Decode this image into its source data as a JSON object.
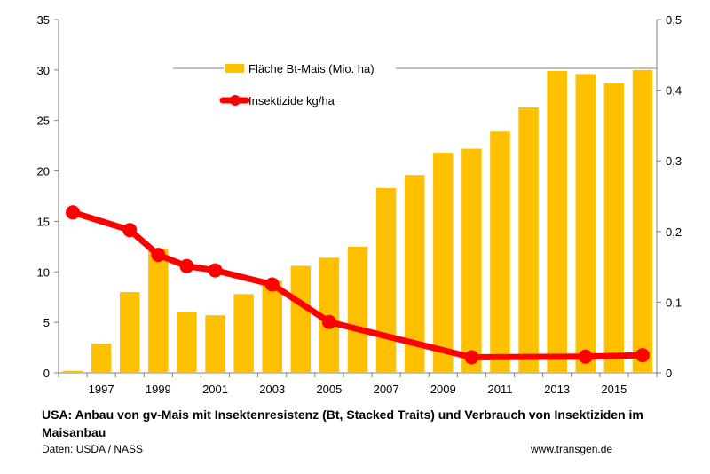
{
  "chart_data": {
    "type": "bar+line",
    "x": [
      1996,
      1997,
      1998,
      1999,
      2000,
      2001,
      2002,
      2003,
      2004,
      2005,
      2006,
      2007,
      2008,
      2009,
      2010,
      2011,
      2012,
      2013,
      2014,
      2015,
      2016
    ],
    "x_tick_labels": [
      "1997",
      "1999",
      "2001",
      "2003",
      "2005",
      "2007",
      "2009",
      "2011",
      "2013",
      "2015"
    ],
    "series": [
      {
        "name": "Fläche Bt-Mais (Mio. ha)",
        "kind": "bar",
        "axis": "left",
        "color": "#FFC000",
        "values": [
          0.2,
          2.9,
          8.0,
          12.3,
          6.0,
          5.7,
          7.8,
          9.1,
          10.6,
          11.4,
          12.5,
          18.3,
          19.6,
          21.8,
          22.2,
          23.9,
          26.3,
          29.9,
          29.6,
          28.7,
          30.0
        ]
      },
      {
        "name": "Insektizide kg/ha",
        "kind": "line",
        "axis": "right",
        "color": "#FF0000",
        "x": [
          1996,
          1998,
          1999,
          2000,
          2001,
          2003,
          2005,
          2010,
          2014,
          2016
        ],
        "values": [
          0.227,
          0.202,
          0.167,
          0.151,
          0.145,
          0.125,
          0.072,
          0.022,
          0.023,
          0.025
        ]
      }
    ],
    "y_left": {
      "range": [
        0,
        35
      ],
      "ticks": [
        "0",
        "5",
        "10",
        "15",
        "20",
        "25",
        "30",
        "35"
      ]
    },
    "y_right": {
      "range": [
        0,
        0.5
      ],
      "ticks": [
        "0",
        "0,1",
        "0,2",
        "0,3",
        "0,4",
        "0,5"
      ]
    },
    "grid": false,
    "legend": "top-center"
  },
  "caption": "USA: Anbau von gv-Mais mit Insektenresistenz (Bt, Stacked Traits) und Verbrauch von Insektiziden im Maisanbau",
  "source": "Daten: USDA / NASS",
  "website": "www.transgen.de"
}
